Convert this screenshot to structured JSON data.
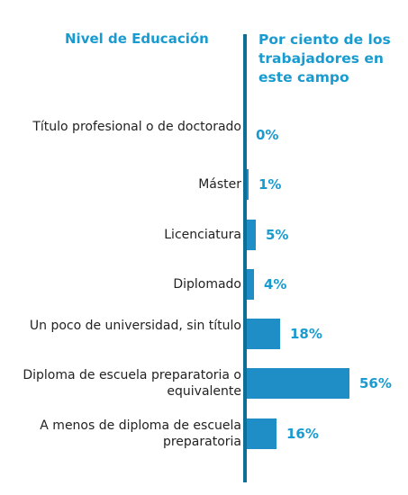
{
  "header": {
    "left": "Nivel de Educación",
    "right": "Por ciento de los trabajadores en este campo"
  },
  "chart_data": {
    "type": "bar",
    "orientation": "horizontal",
    "categories": [
      "Título profesional o de doctorado",
      "Máster",
      "Licenciatura",
      "Diplomado",
      "Un poco de universidad, sin título",
      "Diploma de escuela preparatoria o equivalente",
      "A menos de diploma de escuela preparatoria"
    ],
    "values": [
      0,
      1,
      5,
      4,
      18,
      56,
      16
    ],
    "value_labels": [
      "0%",
      "1%",
      "5%",
      "4%",
      "18%",
      "56%",
      "16%"
    ],
    "xlim": [
      0,
      56
    ],
    "grid": false,
    "colors": {
      "bar": "#1f8ec6",
      "axis": "#0e6e94",
      "accent_text": "#1a9bd0"
    }
  }
}
